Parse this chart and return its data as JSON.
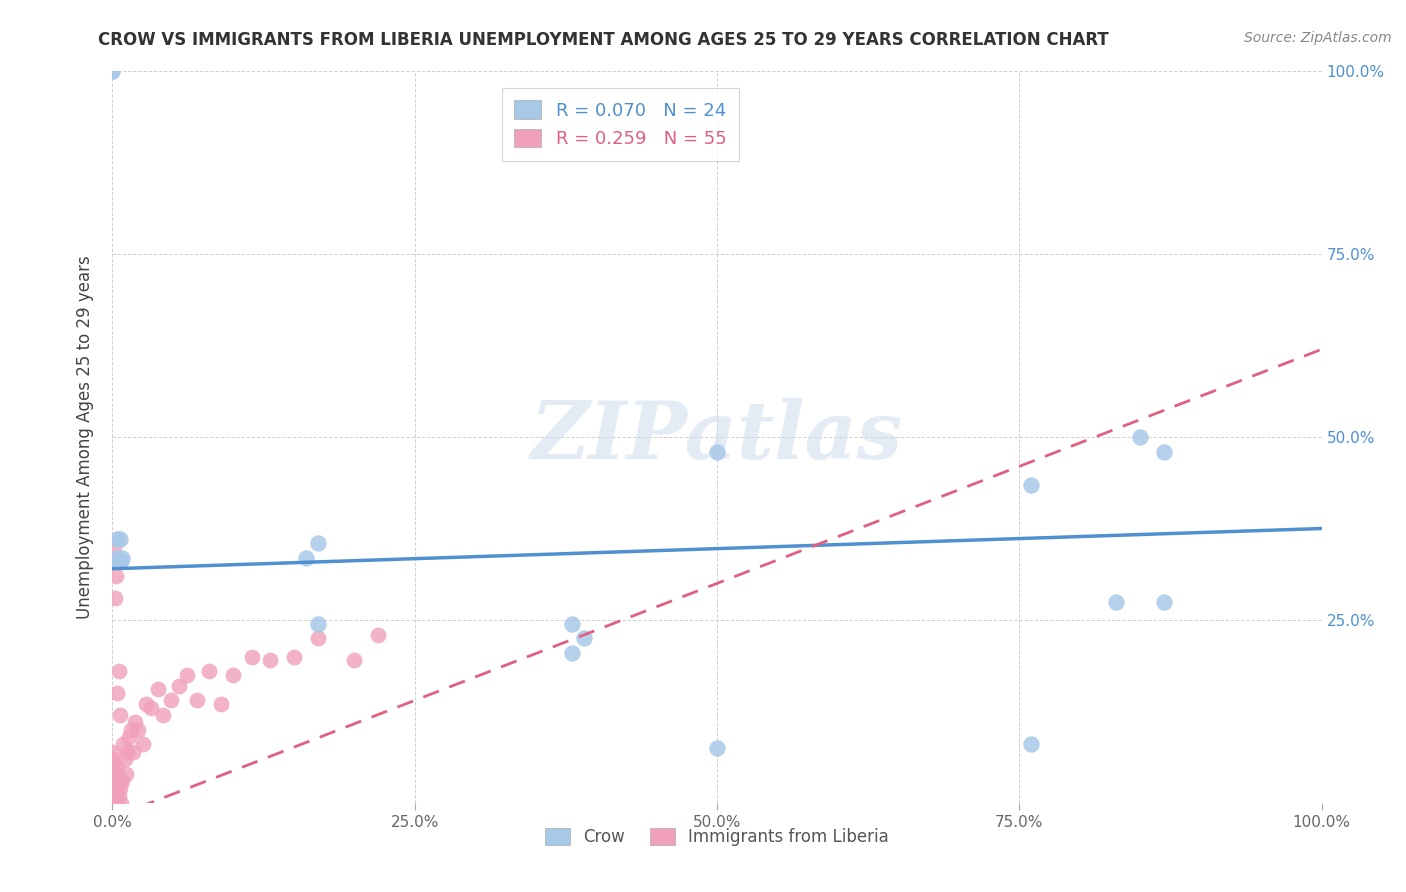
{
  "title": "CROW VS IMMIGRANTS FROM LIBERIA UNEMPLOYMENT AMONG AGES 25 TO 29 YEARS CORRELATION CHART",
  "source": "Source: ZipAtlas.com",
  "ylabel": "Unemployment Among Ages 25 to 29 years",
  "legend1_label": "Crow",
  "legend2_label": "Immigrants from Liberia",
  "R_crow": 0.07,
  "N_crow": 24,
  "R_liberia": 0.259,
  "N_liberia": 55,
  "crow_color": "#a8c8e8",
  "liberia_color": "#f0a0b8",
  "crow_line_color": "#5090d0",
  "liberia_line_color": "#e06080",
  "right_axis_color": "#5090d0",
  "background_color": "#ffffff",
  "watermark": "ZIPatlas",
  "crow_x": [
    0.003,
    0.008,
    0.004,
    0.006,
    0.005,
    0.007,
    0.004,
    0.006,
    0.17,
    0.16,
    0.38,
    0.39,
    0.5,
    0.76,
    0.83,
    0.87,
    0.87,
    0.85,
    0.0,
    0.0,
    0.17,
    0.38,
    0.5,
    0.76
  ],
  "crow_y": [
    0.335,
    0.335,
    0.33,
    0.33,
    0.33,
    0.33,
    0.36,
    0.36,
    0.355,
    0.335,
    0.205,
    0.225,
    0.48,
    0.435,
    0.275,
    0.275,
    0.48,
    0.5,
    1.0,
    1.0,
    0.245,
    0.245,
    0.075,
    0.08
  ],
  "lib_x": [
    0.0,
    0.0,
    0.0,
    0.0,
    0.0,
    0.0,
    0.0,
    0.0,
    0.0,
    0.0,
    0.002,
    0.002,
    0.003,
    0.003,
    0.004,
    0.004,
    0.005,
    0.005,
    0.006,
    0.007,
    0.008,
    0.009,
    0.01,
    0.011,
    0.012,
    0.014,
    0.015,
    0.017,
    0.019,
    0.021,
    0.025,
    0.028,
    0.032,
    0.038,
    0.042,
    0.048,
    0.055,
    0.062,
    0.07,
    0.08,
    0.09,
    0.1,
    0.115,
    0.13,
    0.15,
    0.17,
    0.2,
    0.22,
    0.0,
    0.001,
    0.002,
    0.003,
    0.004,
    0.005,
    0.006
  ],
  "lib_y": [
    0.0,
    0.01,
    0.02,
    0.03,
    0.04,
    0.05,
    0.06,
    0.07,
    0.035,
    0.015,
    0.0,
    0.03,
    0.01,
    0.05,
    0.0,
    0.04,
    0.01,
    0.03,
    0.02,
    0.0,
    0.03,
    0.08,
    0.06,
    0.04,
    0.07,
    0.09,
    0.1,
    0.07,
    0.11,
    0.1,
    0.08,
    0.135,
    0.13,
    0.155,
    0.12,
    0.14,
    0.16,
    0.175,
    0.14,
    0.18,
    0.135,
    0.175,
    0.2,
    0.195,
    0.2,
    0.225,
    0.195,
    0.23,
    0.33,
    0.35,
    0.28,
    0.31,
    0.15,
    0.18,
    0.12
  ],
  "x_ticks": [
    0.0,
    0.25,
    0.5,
    0.75,
    1.0
  ],
  "x_tick_labels": [
    "0.0%",
    "25.0%",
    "50.0%",
    "75.0%",
    "100.0%"
  ],
  "y_ticks": [
    0.0,
    0.25,
    0.5,
    0.75,
    1.0
  ],
  "y_tick_labels_right": [
    "",
    "25.0%",
    "50.0%",
    "75.0%",
    "100.0%"
  ]
}
